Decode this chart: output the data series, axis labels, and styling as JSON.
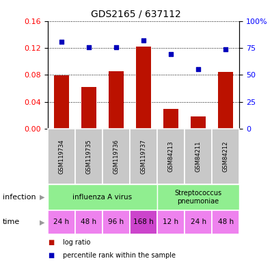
{
  "title": "GDS2165 / 637112",
  "samples": [
    "GSM119734",
    "GSM119735",
    "GSM119736",
    "GSM119737",
    "GSM84213",
    "GSM84211",
    "GSM84212"
  ],
  "log_ratio": [
    0.079,
    0.062,
    0.086,
    0.122,
    0.03,
    0.018,
    0.085
  ],
  "percentile_rank": [
    80.5,
    75.8,
    75.7,
    82.0,
    69.3,
    55.2,
    73.7
  ],
  "ylim_left": [
    0,
    0.16
  ],
  "ylim_right": [
    0,
    100
  ],
  "yticks_left": [
    0,
    0.04,
    0.08,
    0.12,
    0.16
  ],
  "yticks_right": [
    0,
    25,
    50,
    75,
    100
  ],
  "time_labels": [
    "24 h",
    "48 h",
    "96 h",
    "168 h",
    "12 h",
    "24 h",
    "48 h"
  ],
  "time_colors": [
    "#EE82EE",
    "#EE82EE",
    "#EE82EE",
    "#CC44CC",
    "#EE82EE",
    "#EE82EE",
    "#EE82EE"
  ],
  "bar_color": "#BB1100",
  "dot_color": "#0000BB",
  "sample_bg_color": "#C8C8C8",
  "inf_color": "#90EE90",
  "legend_bar": "log ratio",
  "legend_dot": "percentile rank within the sample",
  "title_fontsize": 10,
  "n_influenza": 4,
  "n_strep": 3
}
